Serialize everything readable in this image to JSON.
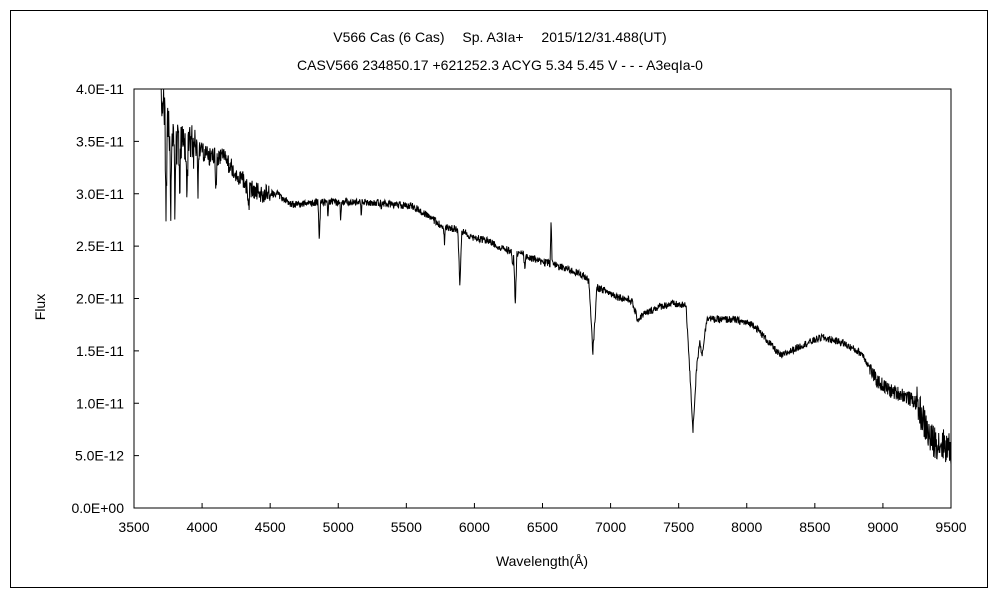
{
  "chart_data": {
    "type": "line",
    "title": "V566 Cas (6 Cas)　 Sp. A3Ia+　 2015/12/31.488(UT)",
    "subtitle": "CASV566 234850.17 +621252.3 ACYG 5.34 5.45 V - - - A3eqIa-0",
    "xlabel": "Wavelength(Å)",
    "ylabel": "Flux",
    "xlim": [
      3500,
      9500
    ],
    "ylim": [
      0,
      4e-11
    ],
    "grid": false,
    "legend": "none",
    "line_color": "#000000",
    "x_ticks": [
      3500,
      4000,
      4500,
      5000,
      5500,
      6000,
      6500,
      7000,
      7500,
      8000,
      8500,
      9000,
      9500
    ],
    "x_tick_labels": [
      "3500",
      "4000",
      "4500",
      "5000",
      "5500",
      "6000",
      "6500",
      "7000",
      "7500",
      "8000",
      "8500",
      "9000",
      "9500"
    ],
    "y_ticks": [
      0,
      5e-12,
      1e-11,
      1.5e-11,
      2e-11,
      2.5e-11,
      3e-11,
      3.5e-11,
      4e-11
    ],
    "y_tick_labels": [
      "0.0E+00",
      "5.0E-12",
      "1.0E-11",
      "1.5E-11",
      "2.0E-11",
      "2.5E-11",
      "3.0E-11",
      "3.5E-11",
      "4.0E-11"
    ],
    "continuum": [
      [
        3700,
        3.9e-11
      ],
      [
        3760,
        3.55e-11
      ],
      [
        3850,
        3.45e-11
      ],
      [
        3950,
        3.45e-11
      ],
      [
        4050,
        3.35e-11
      ],
      [
        4150,
        3.35e-11
      ],
      [
        4250,
        3.2e-11
      ],
      [
        4350,
        3.05e-11
      ],
      [
        4450,
        3e-11
      ],
      [
        4550,
        3e-11
      ],
      [
        4650,
        2.9e-11
      ],
      [
        4750,
        2.9e-11
      ],
      [
        4850,
        2.92e-11
      ],
      [
        5000,
        2.92e-11
      ],
      [
        5200,
        2.92e-11
      ],
      [
        5400,
        2.9e-11
      ],
      [
        5550,
        2.88e-11
      ],
      [
        5650,
        2.8e-11
      ],
      [
        5750,
        2.7e-11
      ],
      [
        5900,
        2.65e-11
      ],
      [
        6000,
        2.58e-11
      ],
      [
        6100,
        2.55e-11
      ],
      [
        6200,
        2.48e-11
      ],
      [
        6350,
        2.42e-11
      ],
      [
        6500,
        2.35e-11
      ],
      [
        6650,
        2.3e-11
      ],
      [
        6800,
        2.22e-11
      ],
      [
        6880,
        2.12e-11
      ],
      [
        6950,
        2.08e-11
      ],
      [
        7050,
        2.02e-11
      ],
      [
        7150,
        1.98e-11
      ],
      [
        7250,
        1.85e-11
      ],
      [
        7350,
        1.92e-11
      ],
      [
        7450,
        1.95e-11
      ],
      [
        7550,
        1.93e-11
      ],
      [
        7750,
        1.8e-11
      ],
      [
        7900,
        1.8e-11
      ],
      [
        8050,
        1.75e-11
      ],
      [
        8150,
        1.6e-11
      ],
      [
        8250,
        1.45e-11
      ],
      [
        8400,
        1.55e-11
      ],
      [
        8550,
        1.63e-11
      ],
      [
        8700,
        1.58e-11
      ],
      [
        8850,
        1.47e-11
      ],
      [
        8950,
        1.22e-11
      ],
      [
        9050,
        1.12e-11
      ],
      [
        9150,
        1.08e-11
      ],
      [
        9250,
        1e-11
      ],
      [
        9350,
        6.5e-12
      ],
      [
        9450,
        6e-12
      ],
      [
        9500,
        5.5e-12
      ]
    ],
    "features": [
      {
        "x": 3735,
        "w": 8,
        "depth": 1e-11
      },
      {
        "x": 3770,
        "w": 6,
        "depth": 6e-12
      },
      {
        "x": 3800,
        "w": 6,
        "depth": 6e-12
      },
      {
        "x": 3835,
        "w": 6,
        "depth": 5e-12
      },
      {
        "x": 3889,
        "w": 8,
        "depth": 5e-12
      },
      {
        "x": 3970,
        "w": 8,
        "depth": 4e-12
      },
      {
        "x": 4101,
        "w": 8,
        "depth": 4e-12
      },
      {
        "x": 4340,
        "w": 10,
        "depth": 2.5e-12
      },
      {
        "x": 4861,
        "w": 10,
        "depth": 3.5e-12
      },
      {
        "x": 4924,
        "w": 6,
        "depth": 1.5e-12
      },
      {
        "x": 5018,
        "w": 6,
        "depth": 1.6e-12
      },
      {
        "x": 5169,
        "w": 6,
        "depth": 1.8e-12
      },
      {
        "x": 5316,
        "w": 6,
        "depth": 1e-12
      },
      {
        "x": 5780,
        "w": 10,
        "depth": 1.5e-12
      },
      {
        "x": 5893,
        "w": 14,
        "depth": 5.5e-12
      },
      {
        "x": 6282,
        "w": 10,
        "depth": 1.4e-12
      },
      {
        "x": 6300,
        "w": 12,
        "depth": 5e-12
      },
      {
        "x": 6370,
        "w": 10,
        "depth": 1.2e-12
      },
      {
        "x": 6563,
        "w": 8,
        "depth": -4e-12
      },
      {
        "x": 6870,
        "w": 30,
        "depth": 6.5e-12
      },
      {
        "x": 7200,
        "w": 45,
        "depth": 1.2e-12
      },
      {
        "x": 7605,
        "w": 50,
        "depth": 1.15e-11
      },
      {
        "x": 7670,
        "w": 40,
        "depth": 4e-12
      }
    ],
    "noise_seed": 566
  }
}
